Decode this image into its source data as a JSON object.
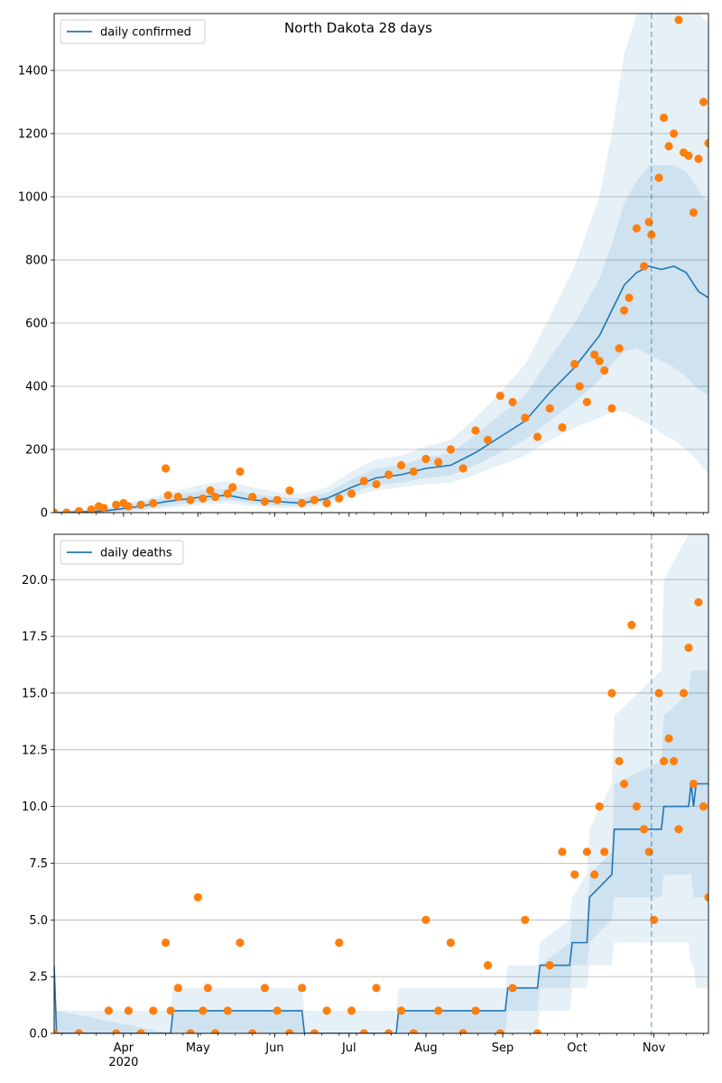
{
  "chart_data": [
    {
      "type": "line",
      "title": "North Dakota 28 days",
      "xlabel": "",
      "ylabel": "",
      "ylim": [
        0,
        1580
      ],
      "y_ticks": [
        0,
        200,
        400,
        600,
        800,
        1000,
        1200,
        1400
      ],
      "x_tick_labels": [
        "Apr\n2020",
        "May",
        "Jun",
        "Jul",
        "Aug",
        "Sep",
        "Oct",
        "Nov"
      ],
      "grid": "horizontal",
      "legend": {
        "placement": "top-left",
        "entries": [
          "daily confirmed"
        ]
      },
      "forecast_day": 241,
      "colors": {
        "line": "#1f77b4",
        "points": "#ff7f0e",
        "band": "#1f77b4",
        "vline": "#1f77b4"
      },
      "series": [
        {
          "name": "daily confirmed",
          "x_days": [
            0,
            20,
            35,
            45,
            60,
            70,
            80,
            90,
            100,
            110,
            120,
            130,
            140,
            150,
            160,
            170,
            180,
            190,
            200,
            210,
            220,
            225,
            230,
            235,
            240,
            245,
            250,
            255,
            260,
            264
          ],
          "values": [
            0,
            5,
            20,
            35,
            50,
            55,
            40,
            35,
            30,
            45,
            80,
            110,
            120,
            140,
            150,
            190,
            240,
            290,
            380,
            460,
            560,
            640,
            720,
            760,
            780,
            770,
            780,
            760,
            700,
            680
          ]
        }
      ],
      "bands": [
        {
          "lower": [
            0,
            0,
            5,
            15,
            25,
            30,
            20,
            15,
            15,
            25,
            50,
            70,
            80,
            90,
            95,
            120,
            150,
            180,
            230,
            270,
            300,
            320,
            320,
            300,
            280,
            250,
            230,
            200,
            160,
            120
          ],
          "upper": [
            5,
            15,
            40,
            60,
            90,
            100,
            80,
            65,
            60,
            80,
            130,
            170,
            180,
            210,
            230,
            300,
            380,
            470,
            620,
            780,
            1000,
            1200,
            1450,
            1620,
            1700,
            1750,
            1750,
            1700,
            1600,
            1550
          ]
        },
        {
          "lower": [
            0,
            2,
            10,
            22,
            35,
            40,
            30,
            22,
            22,
            35,
            62,
            88,
            95,
            110,
            118,
            150,
            190,
            230,
            290,
            350,
            420,
            470,
            510,
            520,
            500,
            480,
            460,
            430,
            390,
            370
          ],
          "upper": [
            2,
            10,
            32,
            50,
            70,
            75,
            58,
            50,
            45,
            62,
            105,
            140,
            150,
            175,
            188,
            245,
            310,
            370,
            490,
            600,
            740,
            850,
            980,
            1050,
            1100,
            1100,
            1100,
            1080,
            1020,
            980
          ]
        }
      ],
      "points": {
        "x_days": [
          0,
          5,
          10,
          15,
          18,
          20,
          25,
          28,
          30,
          35,
          40,
          45,
          46,
          50,
          55,
          60,
          63,
          65,
          70,
          72,
          75,
          80,
          85,
          90,
          95,
          100,
          105,
          110,
          115,
          120,
          125,
          130,
          135,
          140,
          145,
          150,
          155,
          160,
          165,
          170,
          175,
          180,
          185,
          190,
          195,
          200,
          205,
          210,
          212,
          215,
          218,
          220,
          222,
          225,
          228,
          230,
          232,
          235,
          238,
          240,
          241,
          244,
          246,
          248,
          250,
          252,
          254,
          256,
          258,
          260,
          262,
          264
        ],
        "values": [
          0,
          0,
          5,
          10,
          20,
          15,
          25,
          30,
          20,
          25,
          30,
          140,
          55,
          50,
          40,
          45,
          70,
          50,
          60,
          80,
          130,
          50,
          35,
          40,
          70,
          30,
          40,
          30,
          45,
          60,
          100,
          90,
          120,
          150,
          130,
          170,
          160,
          200,
          140,
          260,
          230,
          370,
          350,
          300,
          240,
          330,
          270,
          470,
          400,
          350,
          500,
          480,
          450,
          330,
          520,
          640,
          680,
          900,
          780,
          920,
          880,
          1060,
          1250,
          1160,
          1200,
          1560,
          1140,
          1130,
          950,
          1120,
          1300,
          1170
        ]
      }
    },
    {
      "type": "line",
      "title": "",
      "xlabel": "",
      "ylabel": "",
      "ylim": [
        0,
        22
      ],
      "y_ticks": [
        "0.0",
        "2.5",
        "5.0",
        "7.5",
        "10.0",
        "12.5",
        "15.0",
        "17.5",
        "20.0"
      ],
      "x_tick_labels": [
        "Apr\n2020",
        "May",
        "Jun",
        "Jul",
        "Aug",
        "Sep",
        "Oct",
        "Nov"
      ],
      "grid": "horizontal",
      "legend": {
        "placement": "top-left",
        "entries": [
          "daily deaths"
        ]
      },
      "forecast_day": 241,
      "colors": {
        "line": "#1f77b4",
        "points": "#ff7f0e",
        "band": "#1f77b4",
        "vline": "#1f77b4"
      },
      "series": [
        {
          "name": "daily deaths",
          "x_days": [
            0,
            1,
            47,
            48,
            100,
            101,
            138,
            139,
            182,
            183,
            195,
            196,
            208,
            209,
            215,
            216,
            225,
            226,
            245,
            246,
            256,
            257,
            258,
            259,
            264
          ],
          "values": [
            3,
            0,
            0,
            1,
            1,
            0,
            0,
            1,
            1,
            2,
            2,
            3,
            3,
            4,
            4,
            6,
            7,
            9,
            9,
            10,
            10,
            11,
            10,
            11,
            11
          ]
        }
      ],
      "bands": [
        {
          "lower": [
            0,
            0,
            0,
            0,
            0,
            0,
            0,
            0,
            0,
            0,
            0,
            1,
            1,
            2,
            2,
            3,
            3,
            4,
            4,
            4,
            4,
            3,
            3,
            2,
            2
          ],
          "upper": [
            3,
            1,
            1,
            2,
            2,
            1,
            1,
            2,
            2,
            3,
            3,
            4,
            5,
            6,
            7,
            9,
            11,
            14,
            16,
            20,
            22,
            22,
            22,
            22,
            22
          ]
        },
        {
          "lower": [
            0,
            0,
            0,
            0,
            0,
            0,
            0,
            0,
            0,
            1,
            1,
            2,
            2,
            3,
            3,
            4,
            5,
            6,
            6,
            7,
            7,
            7,
            6,
            6,
            6
          ],
          "upper": [
            3,
            1,
            0,
            1,
            1,
            0,
            0,
            1,
            1,
            2,
            2,
            3,
            4,
            5,
            5,
            7,
            8,
            11,
            12,
            14,
            15,
            16,
            16,
            16,
            16
          ]
        }
      ],
      "points": {
        "x_days": [
          0,
          10,
          22,
          25,
          30,
          35,
          40,
          45,
          47,
          50,
          55,
          58,
          60,
          62,
          65,
          70,
          75,
          80,
          85,
          90,
          95,
          100,
          105,
          110,
          115,
          120,
          125,
          130,
          135,
          140,
          145,
          150,
          155,
          160,
          165,
          170,
          175,
          180,
          185,
          190,
          195,
          200,
          205,
          210,
          215,
          218,
          220,
          222,
          225,
          228,
          230,
          233,
          235,
          238,
          240,
          242,
          244,
          246,
          248,
          250,
          252,
          254,
          256,
          258,
          260,
          262,
          264
        ],
        "values": [
          0,
          0,
          1,
          0,
          1,
          0,
          1,
          4,
          1,
          2,
          0,
          6,
          1,
          2,
          0,
          1,
          4,
          0,
          2,
          1,
          0,
          2,
          0,
          1,
          4,
          1,
          0,
          2,
          0,
          1,
          0,
          5,
          1,
          4,
          0,
          1,
          3,
          0,
          2,
          5,
          0,
          3,
          8,
          7,
          8,
          7,
          10,
          8,
          15,
          12,
          11,
          18,
          10,
          9,
          8,
          5,
          15,
          12,
          13,
          12,
          9,
          15,
          17,
          11,
          19,
          10,
          6
        ]
      }
    }
  ]
}
